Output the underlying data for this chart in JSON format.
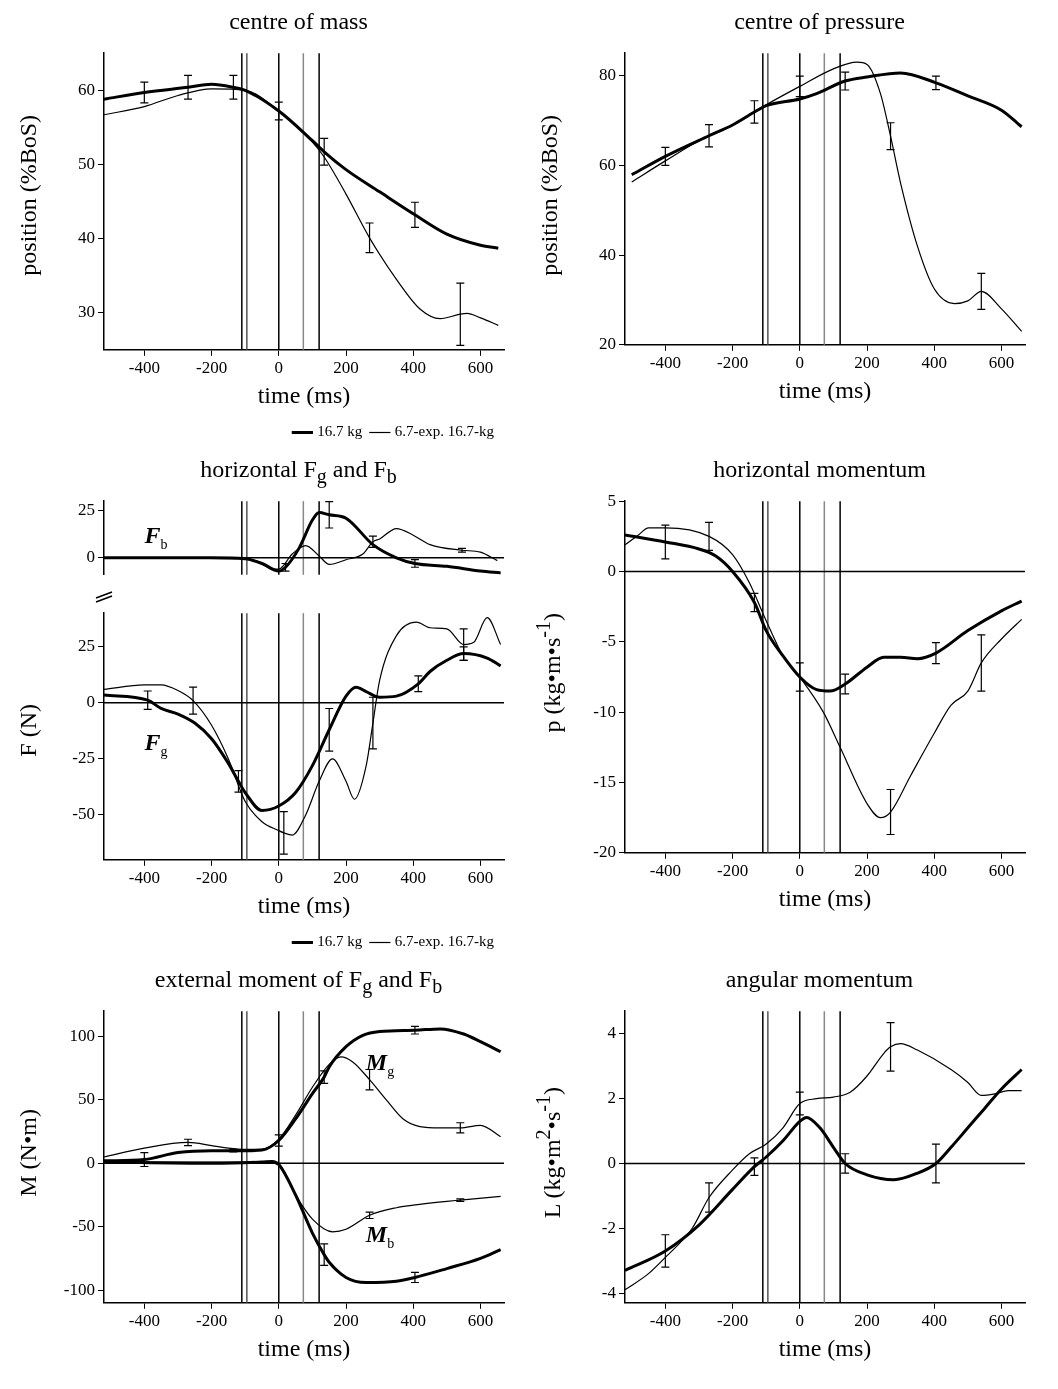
{
  "chart_data": [
    {
      "type": "line",
      "title": "centre of mass",
      "xlabel": "time (ms)",
      "ylabel": "position (%BoS)",
      "xlim": [
        -520,
        670
      ],
      "xticks": [
        -400,
        -200,
        0,
        200,
        400,
        600
      ],
      "ylim": [
        25,
        65
      ],
      "yticks": [
        30,
        40,
        50,
        60
      ],
      "legend": "bottom right",
      "ref_lines": [
        {
          "axis": "x",
          "value": -110,
          "color": "#000000"
        },
        {
          "axis": "x",
          "value": -95,
          "color": "#555555"
        },
        {
          "axis": "x",
          "value": 0,
          "color": "#000000"
        },
        {
          "axis": "x",
          "value": 73,
          "color": "#888888"
        },
        {
          "axis": "x",
          "value": 120,
          "color": "#000000"
        }
      ],
      "series": [
        {
          "name": "16.7 kg",
          "color": "#000000",
          "x": [
            -520,
            -400,
            -270,
            -200,
            -135,
            -100,
            0,
            100,
            135,
            200,
            300,
            405,
            500,
            600,
            653
          ],
          "values": [
            58.8,
            59.7,
            60.4,
            60.8,
            60.4,
            60.0,
            57.2,
            53.2,
            51.7,
            49.3,
            46.3,
            43.2,
            40.6,
            39.1,
            38.7
          ],
          "errors": [
            null,
            1.4,
            1.6,
            null,
            1.6,
            null,
            1.2,
            null,
            1.8,
            null,
            null,
            1.7,
            null,
            null,
            null
          ]
        },
        {
          "name": "6.7-exp. 16.7-kg",
          "color": "#000000",
          "x": [
            -520,
            -400,
            -300,
            -200,
            -100,
            0,
            100,
            135,
            200,
            270,
            350,
            420,
            480,
            540,
            560,
            600,
            653
          ],
          "values": [
            56.7,
            57.8,
            59.3,
            60.2,
            60.0,
            57.2,
            53.0,
            51.0,
            46.0,
            40.1,
            34.5,
            30.5,
            29.2,
            29.8,
            29.9,
            29.3,
            28.3
          ],
          "errors": [
            null,
            null,
            null,
            null,
            null,
            null,
            null,
            null,
            null,
            2,
            null,
            null,
            null,
            4.2,
            null,
            null,
            null
          ]
        }
      ]
    },
    {
      "type": "line",
      "title": "centre of pressure",
      "xlabel": "time (ms)",
      "ylabel": "position (%BoS)",
      "xlim": [
        -520,
        670
      ],
      "xticks": [
        -400,
        -200,
        0,
        200,
        400,
        600
      ],
      "ylim": [
        20,
        85
      ],
      "yticks": [
        20,
        40,
        60,
        80
      ],
      "ref_lines": [
        {
          "axis": "x",
          "value": -110,
          "color": "#000000"
        },
        {
          "axis": "x",
          "value": -95,
          "color": "#555555"
        },
        {
          "axis": "x",
          "value": 0,
          "color": "#000000"
        },
        {
          "axis": "x",
          "value": 73,
          "color": "#888888"
        },
        {
          "axis": "x",
          "value": 120,
          "color": "#000000"
        }
      ],
      "series": [
        {
          "color": "#000000",
          "x": [
            -500,
            -400,
            -270,
            -200,
            -135,
            -100,
            0,
            50,
            135,
            200,
            300,
            405,
            500,
            600,
            660
          ],
          "values": [
            57.9,
            62.0,
            66.6,
            69.0,
            71.9,
            73.3,
            74.8,
            76.0,
            78.8,
            79.7,
            80.6,
            78.4,
            75.5,
            72.3,
            68.6
          ],
          "errors": [
            null,
            2,
            2.5,
            null,
            2.5,
            null,
            null,
            null,
            2,
            null,
            null,
            1.5,
            null,
            null,
            null
          ]
        },
        {
          "color": "#000000",
          "x": [
            -500,
            -400,
            -300,
            -200,
            -100,
            0,
            100,
            170,
            200,
            240,
            270,
            300,
            350,
            400,
            460,
            500,
            540,
            600,
            660
          ],
          "values": [
            56.3,
            61,
            65.5,
            69,
            73.5,
            77.6,
            81.5,
            83,
            82.5,
            76,
            66.5,
            56,
            42,
            32.5,
            29.2,
            29.8,
            31.9,
            28,
            23
          ],
          "errors": [
            null,
            null,
            null,
            null,
            null,
            2.3,
            null,
            null,
            null,
            null,
            3,
            null,
            null,
            null,
            null,
            null,
            4,
            null,
            null
          ]
        }
      ]
    },
    {
      "type": "line",
      "title": "horizontal F$_{g}$ and F$_{b}$",
      "xlim": [
        -520,
        670
      ],
      "ylim": [
        -9,
        30
      ],
      "yticks": [
        0,
        25
      ],
      "tick_labels": "y",
      "annotations": [
        "F$_{b}$"
      ],
      "ref_lines": [
        {
          "axis": "x",
          "value": -110,
          "color": "#000000"
        },
        {
          "axis": "x",
          "value": -95,
          "color": "#555555"
        },
        {
          "axis": "x",
          "value": 0,
          "color": "#000000"
        },
        {
          "axis": "x",
          "value": 73,
          "color": "#888888"
        },
        {
          "axis": "x",
          "value": 120,
          "color": "#000000"
        },
        {
          "axis": "y",
          "value": 0,
          "color": "#000000"
        }
      ],
      "series": [
        {
          "color": "#000000",
          "x": [
            -520,
            -200,
            -100,
            -50,
            0,
            20,
            60,
            100,
            120,
            150,
            200,
            280,
            350,
            405,
            500,
            600,
            660
          ],
          "values": [
            0,
            0,
            -0.5,
            -3,
            -7,
            -5,
            5,
            20,
            24,
            22.8,
            21,
            7,
            0,
            -3,
            -4.5,
            -7,
            -8
          ],
          "errors": [
            null,
            null,
            null,
            null,
            null,
            2,
            null,
            null,
            null,
            7,
            null,
            null,
            null,
            2,
            null,
            null,
            null
          ]
        },
        {
          "color": "#000000",
          "x": [
            -520,
            -100,
            -50,
            -20,
            0,
            40,
            80,
            120,
            150,
            200,
            250,
            280,
            300,
            350,
            400,
            450,
            545,
            600,
            650
          ],
          "values": [
            0,
            -0.5,
            -3,
            -6,
            -6,
            2,
            6.5,
            1,
            -3.5,
            -1,
            2,
            8.5,
            10,
            15.5,
            12,
            7,
            4,
            3,
            -1.5
          ],
          "errors": [
            null,
            null,
            null,
            null,
            null,
            null,
            null,
            null,
            null,
            null,
            null,
            3,
            null,
            null,
            null,
            null,
            1,
            null,
            null
          ]
        }
      ]
    },
    {
      "type": "line",
      "xlabel": "time (ms)",
      "ylabel": "F (N)",
      "xlim": [
        -520,
        670
      ],
      "xticks": [
        -400,
        -200,
        0,
        200,
        400,
        600
      ],
      "ylim": [
        -70,
        40
      ],
      "yticks": [
        -50,
        -25,
        0,
        25
      ],
      "legend": "bottom right",
      "annotations": [
        "F$_{g}$"
      ],
      "ref_lines": [
        {
          "axis": "x",
          "value": -110,
          "color": "#000000"
        },
        {
          "axis": "x",
          "value": -95,
          "color": "#555555"
        },
        {
          "axis": "x",
          "value": 0,
          "color": "#000000"
        },
        {
          "axis": "x",
          "value": 73,
          "color": "#888888"
        },
        {
          "axis": "x",
          "value": 120,
          "color": "#000000"
        },
        {
          "axis": "y",
          "value": 0,
          "color": "#000000"
        }
      ],
      "series": [
        {
          "name": "16.7 kg",
          "color": "#000000",
          "x": [
            -520,
            -390,
            -350,
            -300,
            -250,
            -200,
            -150,
            -120,
            -100,
            -50,
            0,
            50,
            100,
            150,
            200,
            230,
            260,
            300,
            350,
            415,
            450,
            500,
            550,
            620,
            660
          ],
          "values": [
            3.5,
            1.2,
            -2.5,
            -5,
            -9,
            -16,
            -27,
            -35,
            -40,
            -48,
            -46,
            -40,
            -28,
            -12,
            3,
            7,
            5,
            2.5,
            3,
            8.5,
            14,
            19,
            22,
            20,
            16.5
          ],
          "errors": [
            null,
            4.1,
            null,
            null,
            null,
            null,
            null,
            4.8,
            null,
            null,
            null,
            null,
            null,
            9.5,
            null,
            null,
            null,
            null,
            null,
            3.5,
            null,
            null,
            3,
            null,
            null
          ]
        },
        {
          "name": "6.7-exp. 16.7-kg",
          "color": "#000000",
          "x": [
            -520,
            -400,
            -350,
            -300,
            -255,
            -200,
            -150,
            -100,
            -50,
            0,
            15,
            40,
            80,
            120,
            160,
            200,
            225,
            260,
            280,
            300,
            350,
            410,
            450,
            500,
            550,
            580,
            620,
            660
          ],
          "values": [
            6,
            8,
            8,
            5.5,
            1,
            -10,
            -25,
            -44,
            -53,
            -57,
            -58,
            -59,
            -50,
            -35,
            -25,
            -35,
            -43,
            -28,
            -9,
            10,
            30,
            36,
            33.5,
            33,
            26,
            27,
            38,
            26
          ],
          "errors": [
            null,
            null,
            null,
            null,
            6,
            null,
            null,
            null,
            null,
            null,
            9.5,
            null,
            null,
            null,
            null,
            null,
            null,
            null,
            11.5,
            null,
            null,
            null,
            null,
            null,
            7,
            null,
            null,
            null
          ]
        }
      ]
    },
    {
      "type": "line",
      "title": "horizontal momentum",
      "xlabel": "time (ms)",
      "ylabel": "p (kg•m•s$^{-1}$)",
      "xlim": [
        -520,
        670
      ],
      "xticks": [
        -400,
        -200,
        0,
        200,
        400,
        600
      ],
      "ylim": [
        -20,
        5
      ],
      "yticks": [
        -20,
        -15,
        -10,
        -5,
        0,
        5
      ],
      "ref_lines": [
        {
          "axis": "x",
          "value": -110,
          "color": "#000000"
        },
        {
          "axis": "x",
          "value": -95,
          "color": "#555555"
        },
        {
          "axis": "x",
          "value": 0,
          "color": "#000000"
        },
        {
          "axis": "x",
          "value": 73,
          "color": "#888888"
        },
        {
          "axis": "x",
          "value": 120,
          "color": "#000000"
        },
        {
          "axis": "y",
          "value": 0,
          "color": "#000000"
        }
      ],
      "series": [
        {
          "color": "#000000",
          "x": [
            -520,
            -400,
            -300,
            -250,
            -200,
            -135,
            -100,
            -50,
            0,
            50,
            90,
            135,
            200,
            250,
            300,
            350,
            405,
            500,
            600,
            660
          ],
          "values": [
            2.6,
            2.1,
            1.6,
            1.1,
            0,
            -2.2,
            -4.2,
            -6,
            -7.5,
            -8.4,
            -8.5,
            -8,
            -6.8,
            -6.1,
            -6.1,
            -6.2,
            -5.8,
            -4.2,
            -2.8,
            -2.1
          ],
          "errors": [
            null,
            1.2,
            null,
            null,
            null,
            0.65,
            null,
            null,
            1,
            null,
            null,
            0.7,
            null,
            null,
            null,
            null,
            0.75,
            null,
            null,
            null
          ]
        },
        {
          "color": "#000000",
          "x": [
            -520,
            -480,
            -450,
            -400,
            -270,
            -200,
            -150,
            -100,
            -50,
            0,
            70,
            120,
            200,
            240,
            270,
            330,
            400,
            450,
            500,
            540,
            600,
            660
          ],
          "values": [
            1.9,
            2.6,
            3.1,
            3.1,
            2.5,
            1.2,
            -0.8,
            -3.5,
            -6,
            -7.5,
            -10,
            -12.5,
            -16.5,
            -17.5,
            -17.1,
            -14.5,
            -11.5,
            -9.5,
            -8.5,
            -6.5,
            -4.8,
            -3.4
          ],
          "errors": [
            null,
            null,
            null,
            null,
            1,
            null,
            null,
            null,
            null,
            null,
            null,
            null,
            null,
            null,
            1.6,
            null,
            null,
            null,
            null,
            2,
            null,
            null
          ]
        }
      ]
    },
    {
      "type": "line",
      "title": "external moment of F$_{g}$ and F$_{b}$",
      "xlabel": "time (ms)",
      "ylabel": "M (N•m)",
      "xlim": [
        -520,
        670
      ],
      "xticks": [
        -400,
        -200,
        0,
        200,
        400,
        600
      ],
      "ylim": [
        -110,
        120
      ],
      "yticks": [
        -100,
        -50,
        0,
        50,
        100
      ],
      "annotations": [
        "M$_{g}$",
        "M$_{b}$"
      ],
      "ref_lines": [
        {
          "axis": "x",
          "value": -110,
          "color": "#000000"
        },
        {
          "axis": "x",
          "value": -95,
          "color": "#555555"
        },
        {
          "axis": "x",
          "value": 0,
          "color": "#000000"
        },
        {
          "axis": "x",
          "value": 73,
          "color": "#888888"
        },
        {
          "axis": "x",
          "value": 120,
          "color": "#000000"
        },
        {
          "axis": "y",
          "value": 0,
          "color": "#000000"
        }
      ],
      "series": [
        {
          "color": "#000000",
          "x": [
            -520,
            -400,
            -300,
            -200,
            -135,
            -100,
            -50,
            0,
            50,
            100,
            135,
            150,
            200,
            250,
            300,
            405,
            480,
            550,
            600,
            660
          ],
          "values": [
            2,
            3,
            8.5,
            10,
            10,
            10,
            10.5,
            18,
            35,
            55,
            68,
            76,
            92,
            101,
            104,
            105,
            106,
            102,
            96,
            88
          ],
          "errors": [
            null,
            5.5,
            null,
            null,
            1,
            null,
            null,
            4.5,
            null,
            null,
            5,
            null,
            null,
            null,
            null,
            3,
            null,
            null,
            null,
            null
          ]
        },
        {
          "color": "#000000",
          "x": [
            -520,
            -400,
            -270,
            -200,
            -150,
            -100,
            -50,
            0,
            50,
            100,
            150,
            185,
            220,
            270,
            320,
            370,
            420,
            480,
            540,
            600,
            660
          ],
          "values": [
            5,
            12,
            16.5,
            14,
            12,
            11,
            11,
            19,
            38,
            60,
            78,
            84,
            80,
            66,
            50,
            35,
            29,
            28,
            28,
            30,
            21
          ],
          "errors": [
            null,
            null,
            2.5,
            null,
            null,
            null,
            null,
            null,
            null,
            null,
            null,
            null,
            null,
            8,
            null,
            null,
            null,
            null,
            4,
            null,
            null
          ]
        },
        {
          "color": "#000000",
          "x": [
            -520,
            -200,
            -50,
            -20,
            0,
            50,
            100,
            135,
            150,
            200,
            260,
            350,
            405,
            500,
            600,
            660
          ],
          "values": [
            1,
            0,
            1,
            1.5,
            -1,
            -25,
            -55,
            -72,
            -78,
            -90,
            -94,
            -93,
            -90,
            -83,
            -75,
            -68
          ],
          "errors": [
            null,
            null,
            null,
            null,
            null,
            null,
            null,
            8.5,
            null,
            null,
            null,
            null,
            4,
            null,
            null,
            null
          ]
        },
        {
          "color": "#000000",
          "x": [
            -520,
            -50,
            0,
            50,
            100,
            160,
            200,
            270,
            350,
            400,
            500,
            540,
            660
          ],
          "values": [
            1,
            1,
            -1,
            -25,
            -44,
            -54,
            -52,
            -41,
            -35,
            -33,
            -30,
            -29,
            -26
          ],
          "errors": [
            null,
            null,
            null,
            null,
            null,
            null,
            null,
            2.5,
            null,
            null,
            null,
            1,
            null
          ]
        }
      ]
    },
    {
      "type": "line",
      "title": "angular momentum",
      "xlabel": "time (ms)",
      "ylabel": "L (kg•m$^{2}$•s$^{-1}$)",
      "xlim": [
        -520,
        670
      ],
      "xticks": [
        -400,
        -200,
        0,
        200,
        400,
        600
      ],
      "ylim": [
        -4.3,
        4.7
      ],
      "yticks": [
        -4,
        -2,
        0,
        2,
        4
      ],
      "ref_lines": [
        {
          "axis": "x",
          "value": -110,
          "color": "#000000"
        },
        {
          "axis": "x",
          "value": -95,
          "color": "#555555"
        },
        {
          "axis": "x",
          "value": 0,
          "color": "#000000"
        },
        {
          "axis": "x",
          "value": 73,
          "color": "#888888"
        },
        {
          "axis": "x",
          "value": 120,
          "color": "#000000"
        },
        {
          "axis": "y",
          "value": 0,
          "color": "#000000"
        }
      ],
      "series": [
        {
          "color": "#000000",
          "x": [
            -520,
            -400,
            -300,
            -200,
            -135,
            -100,
            -50,
            0,
            20,
            60,
            100,
            135,
            200,
            280,
            350,
            405,
            450,
            500,
            550,
            600,
            660
          ],
          "values": [
            -3.3,
            -2.7,
            -1.9,
            -0.8,
            -0.1,
            0.2,
            0.7,
            1.3,
            1.42,
            1.1,
            0.5,
            0,
            -0.35,
            -0.5,
            -0.3,
            0,
            0.5,
            1.1,
            1.7,
            2.3,
            2.9
          ],
          "errors": [
            null,
            0.5,
            null,
            null,
            0.27,
            null,
            null,
            null,
            null,
            null,
            null,
            0.3,
            null,
            null,
            null,
            0.6,
            null,
            null,
            null,
            null,
            null
          ]
        },
        {
          "color": "#000000",
          "x": [
            -520,
            -450,
            -400,
            -320,
            -270,
            -200,
            -150,
            -100,
            -50,
            0,
            50,
            100,
            150,
            200,
            250,
            270,
            300,
            350,
            450,
            500,
            540,
            580,
            620,
            660
          ],
          "values": [
            -3.9,
            -3.4,
            -2.9,
            -2,
            -1.05,
            -0.2,
            0.3,
            0.6,
            1.1,
            1.85,
            2,
            2.05,
            2.2,
            2.7,
            3.4,
            3.6,
            3.7,
            3.5,
            2.9,
            2.5,
            2.1,
            2.15,
            2.25,
            2.25
          ],
          "errors": [
            null,
            null,
            null,
            null,
            0.45,
            null,
            null,
            null,
            null,
            0.35,
            null,
            null,
            null,
            null,
            null,
            0.75,
            null,
            null,
            null,
            null,
            null,
            null,
            null,
            null
          ]
        }
      ]
    }
  ]
}
